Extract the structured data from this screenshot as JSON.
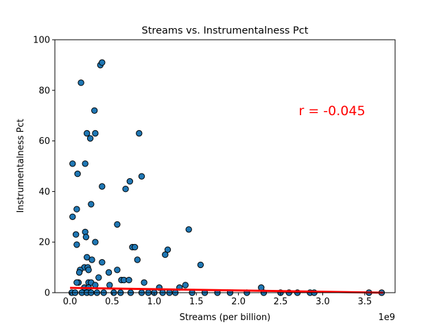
{
  "chart_data": {
    "type": "scatter",
    "title": "Streams vs. Instrumentalness Pct",
    "xlabel": "Streams (per billion)",
    "ylabel": "Instrumentalness Pct",
    "x_offset_label": "1e9",
    "xlim": [
      -0.18,
      3.86
    ],
    "ylim": [
      0,
      100
    ],
    "x_ticks": [
      0.0,
      0.5,
      1.0,
      1.5,
      2.0,
      2.5,
      3.0,
      3.5
    ],
    "x_tick_labels": [
      "0.0",
      "0.5",
      "1.0",
      "1.5",
      "2.0",
      "2.5",
      "3.0",
      "3.5"
    ],
    "y_ticks": [
      0,
      20,
      40,
      60,
      80,
      100
    ],
    "y_tick_labels": [
      "0",
      "20",
      "40",
      "60",
      "80",
      "100"
    ],
    "grid": false,
    "annotation": {
      "text": "r = -0.045",
      "color": "#ff0000"
    },
    "marker_color": "#1f77b4",
    "marker_edge": "#000000",
    "regression": {
      "color": "#ff0000",
      "x": [
        0.0,
        3.72
      ],
      "y": [
        1.9,
        0.0
      ]
    },
    "series": [
      {
        "x": [
          0.36,
          0.38,
          0.13,
          0.29,
          0.2,
          0.3,
          0.82,
          0.24,
          0.03,
          0.18,
          0.09,
          0.85,
          0.71,
          0.38,
          0.66,
          0.25,
          0.08,
          0.03,
          0.56,
          1.41,
          0.18,
          0.07,
          0.19,
          0.3,
          0.08,
          0.74,
          0.77,
          1.16,
          0.8,
          1.13,
          0.2,
          0.26,
          0.38,
          1.55,
          0.17,
          0.21,
          0.12,
          0.56,
          0.11,
          0.22,
          0.46,
          0.34,
          0.61,
          0.64,
          0.7,
          0.88,
          0.1,
          0.22,
          0.25,
          0.08,
          0.3,
          0.47,
          1.37,
          1.06,
          1.3,
          0.17,
          0.22,
          2.27,
          0.02,
          0.06,
          0.14,
          0.2,
          0.25,
          0.32,
          0.4,
          0.52,
          0.6,
          0.72,
          0.85,
          0.93,
          1.0,
          1.1,
          1.18,
          1.25,
          1.45,
          1.6,
          1.75,
          1.9,
          2.1,
          2.3,
          2.5,
          2.6,
          2.7,
          2.85,
          2.9,
          3.55,
          3.7
        ],
        "y": [
          90,
          91,
          83,
          72,
          63,
          63,
          63,
          61,
          51,
          51,
          47,
          46,
          44,
          42,
          41,
          35,
          33,
          30,
          27,
          25,
          24,
          23,
          22,
          20,
          19,
          18,
          18,
          17,
          13,
          15,
          14,
          13,
          12,
          11,
          10,
          10,
          9,
          9,
          8,
          9,
          8,
          6,
          5,
          5,
          5,
          4,
          4,
          4,
          4,
          4,
          3,
          3,
          3,
          2,
          2,
          2,
          2,
          2,
          0,
          0,
          0,
          0,
          0,
          0,
          0,
          0,
          0,
          0,
          0,
          0,
          0,
          0,
          0,
          0,
          0,
          0,
          0,
          0,
          0,
          0,
          0,
          0,
          0,
          0,
          0,
          0,
          0
        ]
      }
    ]
  }
}
